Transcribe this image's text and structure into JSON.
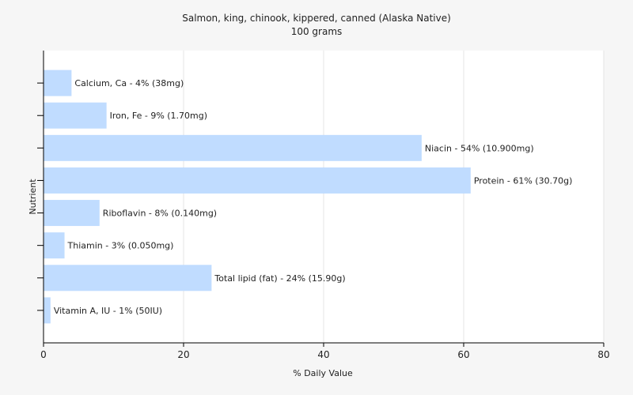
{
  "chart_data": {
    "type": "bar",
    "orientation": "horizontal",
    "title": "Salmon, king, chinook, kippered, canned (Alaska Native)",
    "subtitle": "100 grams",
    "xlabel": "% Daily Value",
    "ylabel": "Nutrient",
    "xlim": [
      0,
      80
    ],
    "xticks": [
      0,
      20,
      40,
      60,
      80
    ],
    "grid": "vertical",
    "bar_color": "#c0dcff",
    "categories": [
      "Calcium, Ca",
      "Iron, Fe",
      "Niacin",
      "Protein",
      "Riboflavin",
      "Thiamin",
      "Total lipid (fat)",
      "Vitamin A, IU"
    ],
    "values": [
      4,
      9,
      54,
      61,
      8,
      3,
      24,
      1
    ],
    "labels": [
      "Calcium, Ca - 4% (38mg)",
      "Iron, Fe - 9% (1.70mg)",
      "Niacin - 54% (10.900mg)",
      "Protein - 61% (30.70g)",
      "Riboflavin - 8% (0.140mg)",
      "Thiamin - 3% (0.050mg)",
      "Total lipid (fat) - 24% (15.90g)",
      "Vitamin A, IU - 1% (50IU)"
    ]
  }
}
